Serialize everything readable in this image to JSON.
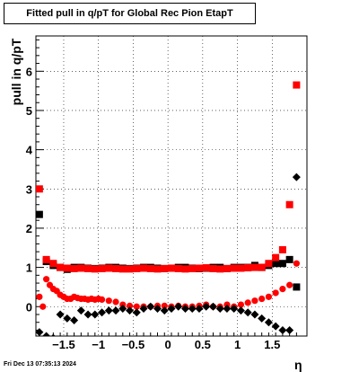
{
  "title": "Fitted pull in q/pT for Global Rec Pion EtapT",
  "timestamp": "Fri Dec 13 07:35:13 2024",
  "chart_data": {
    "type": "scatter",
    "title": "Fitted pull in q/pT for Global Rec Pion EtapT",
    "xlabel": "η",
    "ylabel": "pull in q/pT",
    "xlim": [
      -1.9,
      2.0
    ],
    "ylim": [
      -0.75,
      6.9
    ],
    "x_ticks": [
      -1.5,
      -1,
      -0.5,
      0,
      0.5,
      1,
      1.5
    ],
    "x_tick_labels": [
      "−1.5",
      "−1",
      "−0.5",
      "0",
      "0.5",
      "1",
      "1.5"
    ],
    "y_ticks": [
      0,
      1,
      2,
      3,
      4,
      5,
      6
    ],
    "y_tick_labels": [
      "0",
      "1",
      "2",
      "3",
      "4",
      "5",
      "6"
    ],
    "grid": true,
    "series": [
      {
        "color": "#000000",
        "marker": "square",
        "x": [
          -1.85,
          -1.75,
          -1.65,
          -1.55,
          -1.45,
          -1.35,
          -1.25,
          -1.15,
          -1.05,
          -0.95,
          -0.85,
          -0.75,
          -0.65,
          -0.55,
          -0.45,
          -0.35,
          -0.25,
          -0.15,
          -0.05,
          0.05,
          0.15,
          0.25,
          0.35,
          0.45,
          0.55,
          0.65,
          0.75,
          0.85,
          0.95,
          1.05,
          1.15,
          1.25,
          1.35,
          1.45,
          1.55,
          1.65,
          1.75,
          1.85
        ],
        "y": [
          2.35,
          1.15,
          1.05,
          1.0,
          0.95,
          1.0,
          1.0,
          0.98,
          0.97,
          0.98,
          1.0,
          1.0,
          0.98,
          0.97,
          0.98,
          1.0,
          1.0,
          0.98,
          0.97,
          0.98,
          1.0,
          1.0,
          0.98,
          0.97,
          0.98,
          1.0,
          1.0,
          0.97,
          1.0,
          1.0,
          1.0,
          1.05,
          1.0,
          1.05,
          1.1,
          1.1,
          1.2,
          0.5
        ]
      },
      {
        "color": "#ff0000",
        "marker": "square",
        "x": [
          -1.85,
          -1.75,
          -1.65,
          -1.55,
          -1.45,
          -1.35,
          -1.25,
          -1.15,
          -1.05,
          -0.95,
          -0.85,
          -0.75,
          -0.65,
          -0.55,
          -0.45,
          -0.35,
          -0.25,
          -0.15,
          -0.05,
          0.05,
          0.15,
          0.25,
          0.35,
          0.45,
          0.55,
          0.65,
          0.75,
          0.85,
          0.95,
          1.05,
          1.15,
          1.25,
          1.35,
          1.45,
          1.55,
          1.65,
          1.75,
          1.85
        ],
        "y": [
          3.0,
          1.2,
          1.1,
          1.0,
          0.98,
          0.97,
          0.98,
          0.97,
          0.96,
          0.97,
          0.98,
          0.97,
          0.96,
          0.96,
          0.97,
          0.98,
          0.97,
          0.96,
          0.97,
          0.98,
          0.97,
          0.96,
          0.97,
          0.98,
          0.99,
          0.97,
          0.96,
          0.97,
          0.98,
          0.98,
          0.99,
          1.0,
          1.0,
          1.1,
          1.25,
          1.45,
          2.6,
          5.65
        ]
      },
      {
        "color": "#ff0000",
        "marker": "circle",
        "x": [
          -1.85,
          -1.8,
          -1.75,
          -1.7,
          -1.65,
          -1.6,
          -1.55,
          -1.5,
          -1.45,
          -1.4,
          -1.35,
          -1.3,
          -1.25,
          -1.2,
          -1.15,
          -1.1,
          -1.05,
          -1.0,
          -0.95,
          -0.85,
          -0.75,
          -0.65,
          -0.55,
          -0.45,
          -0.35,
          -0.25,
          -0.15,
          -0.05,
          0.05,
          0.15,
          0.25,
          0.35,
          0.45,
          0.55,
          0.65,
          0.75,
          0.85,
          0.95,
          1.05,
          1.15,
          1.25,
          1.35,
          1.45,
          1.55,
          1.65,
          1.75,
          1.85
        ],
        "y": [
          0.25,
          0.0,
          0.7,
          0.55,
          0.45,
          0.4,
          0.3,
          0.25,
          0.2,
          0.2,
          0.25,
          0.22,
          0.2,
          0.2,
          0.18,
          0.2,
          0.18,
          0.2,
          0.18,
          0.15,
          0.12,
          0.05,
          0.02,
          0.0,
          0.0,
          0.0,
          0.02,
          0.02,
          0.0,
          0.02,
          0.0,
          0.0,
          0.02,
          0.05,
          0.0,
          0.0,
          0.05,
          0.0,
          0.05,
          0.1,
          0.15,
          0.2,
          0.25,
          0.35,
          0.45,
          0.55,
          1.1
        ]
      },
      {
        "color": "#000000",
        "marker": "diamond",
        "x": [
          -1.85,
          -1.75,
          -1.65,
          -1.55,
          -1.45,
          -1.35,
          -1.25,
          -1.15,
          -1.05,
          -0.95,
          -0.85,
          -0.75,
          -0.65,
          -0.55,
          -0.45,
          -0.35,
          -0.25,
          -0.15,
          -0.05,
          0.05,
          0.15,
          0.25,
          0.35,
          0.45,
          0.55,
          0.65,
          0.75,
          0.85,
          0.95,
          1.05,
          1.15,
          1.25,
          1.35,
          1.45,
          1.55,
          1.65,
          1.75,
          1.85
        ],
        "y": [
          -0.65,
          -0.75,
          -0.8,
          -0.2,
          -0.3,
          -0.35,
          -0.1,
          -0.2,
          -0.2,
          -0.15,
          -0.1,
          -0.1,
          -0.05,
          -0.1,
          -0.15,
          -0.05,
          0.0,
          -0.05,
          -0.1,
          -0.05,
          0.0,
          -0.05,
          -0.05,
          -0.05,
          0.0,
          0.0,
          -0.05,
          -0.05,
          -0.05,
          -0.1,
          -0.15,
          -0.2,
          -0.3,
          -0.4,
          -0.5,
          -0.6,
          -0.6,
          3.3
        ]
      }
    ]
  }
}
